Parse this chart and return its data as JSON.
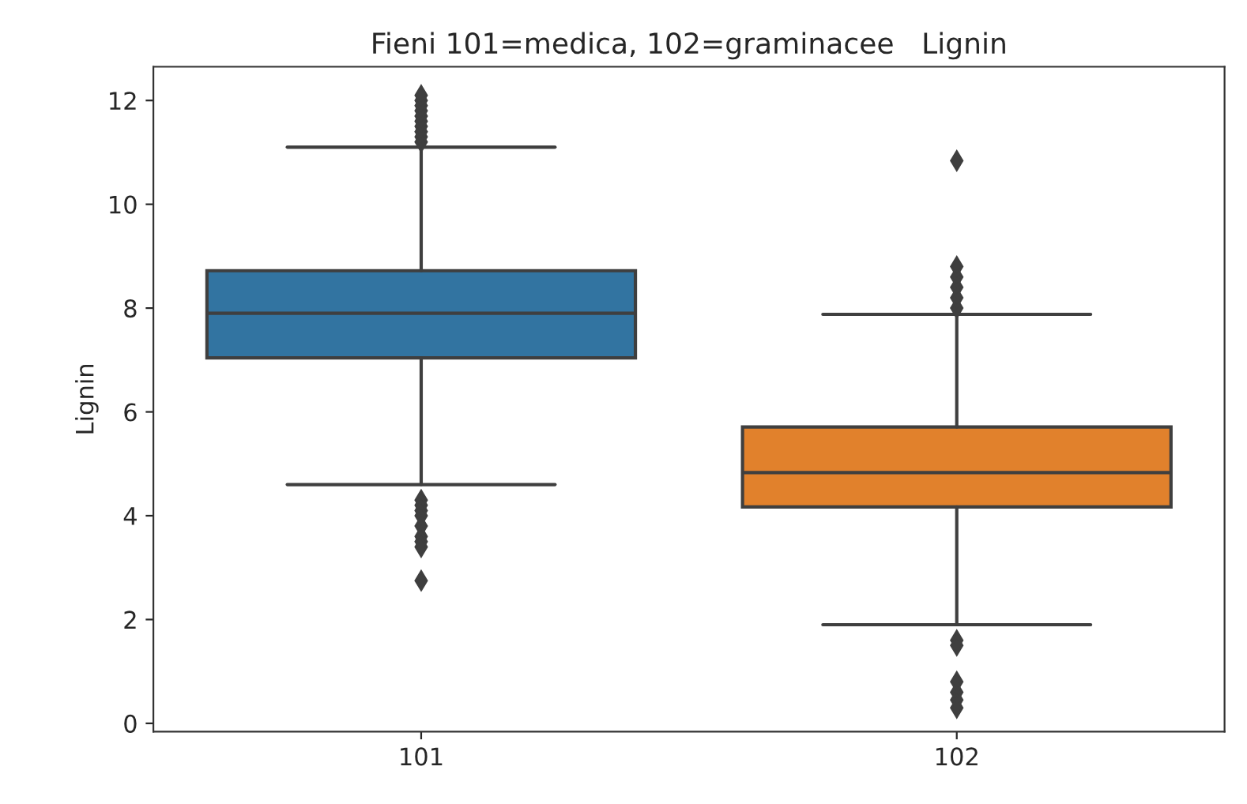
{
  "chart_data": {
    "type": "box",
    "title": "Fieni 101=medica, 102=graminacee   Lignin",
    "ylabel": "Lignin",
    "categories": [
      "101",
      "102"
    ],
    "colors": [
      "#3274a1",
      "#e1812c"
    ],
    "boxes": [
      {
        "low": 4.6,
        "q1": 7.04,
        "median": 7.9,
        "q3": 8.72,
        "high": 11.1,
        "outliers": [
          11.2,
          11.3,
          11.4,
          11.5,
          11.6,
          11.7,
          11.8,
          11.9,
          12.0,
          12.1,
          4.3,
          4.2,
          4.1,
          4.0,
          3.8,
          3.6,
          3.5,
          3.4,
          2.75
        ]
      },
      {
        "low": 1.9,
        "q1": 4.17,
        "median": 4.83,
        "q3": 5.71,
        "high": 7.88,
        "outliers": [
          10.84,
          8.0,
          8.2,
          8.4,
          8.6,
          8.8,
          1.6,
          1.5,
          0.8,
          0.6,
          0.45,
          0.3
        ]
      }
    ],
    "ylim": [
      -0.16,
      12.65
    ],
    "yticks": [
      0,
      2,
      4,
      6,
      8,
      10,
      12
    ],
    "grid": false
  }
}
